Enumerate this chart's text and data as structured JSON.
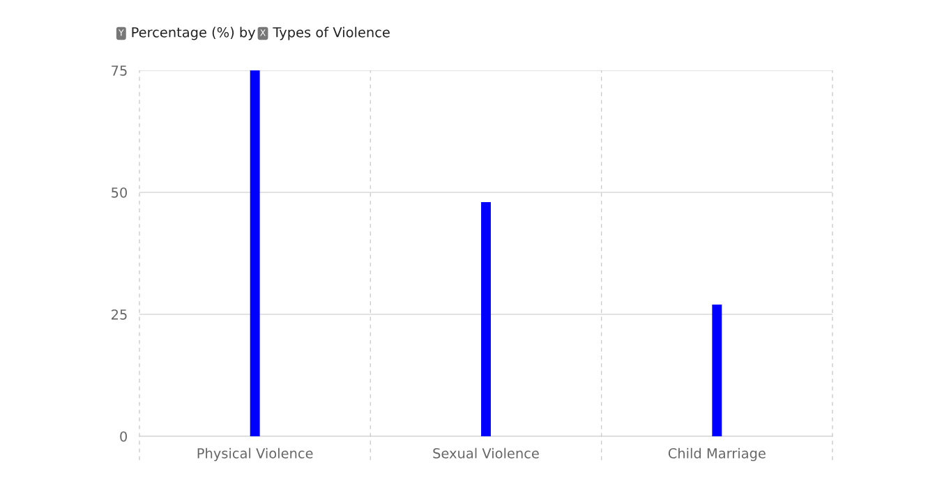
{
  "chart_data": {
    "type": "bar",
    "title": "Y Percentage (%) by X Types of Violence",
    "categories": [
      "Physical Violence",
      "Sexual Violence",
      "Child Marriage"
    ],
    "values": [
      75,
      48,
      27
    ],
    "color": "#0000ff",
    "ylim": [
      0,
      75
    ],
    "yticks": [
      0,
      25,
      50,
      75
    ],
    "grid": true
  }
}
